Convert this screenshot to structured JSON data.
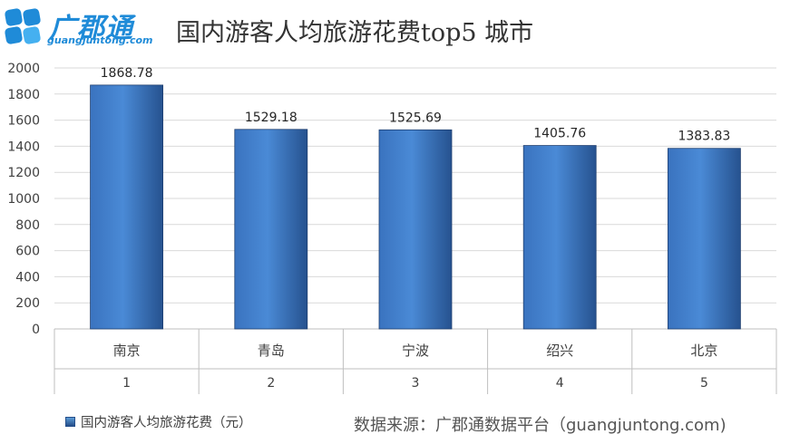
{
  "header": {
    "logo_text": "广郡通",
    "logo_url": "guangjuntong.com",
    "title": "国内游客人均旅游花费top5 城市"
  },
  "colors": {
    "bar_light": "#5b9bd5",
    "bar_dark": "#254e8a",
    "logo": "#1f8bd8"
  },
  "chart_data": {
    "type": "bar",
    "title": "国内游客人均旅游花费top5 城市",
    "categories": [
      "南京",
      "青岛",
      "宁波",
      "绍兴",
      "北京"
    ],
    "ranks": [
      "1",
      "2",
      "3",
      "4",
      "5"
    ],
    "series": [
      {
        "name": "国内游客人均旅游花费（元）",
        "values": [
          1868.78,
          1529.18,
          1525.69,
          1405.76,
          1383.83
        ]
      }
    ],
    "value_labels": [
      "1868.78",
      "1529.18",
      "1525.69",
      "1405.76",
      "1383.83"
    ],
    "ylim": [
      0,
      2000
    ],
    "yticks": [
      "0",
      "200",
      "400",
      "600",
      "800",
      "1000",
      "1200",
      "1400",
      "1600",
      "1800",
      "2000"
    ],
    "xlabel": "",
    "ylabel": "",
    "grid": true,
    "legend_position": "bottom-left"
  },
  "footer": {
    "legend_label": "国内游客人均旅游花费（元）",
    "source": "数据来源：广郡通数据平台（guangjuntong.com)"
  }
}
